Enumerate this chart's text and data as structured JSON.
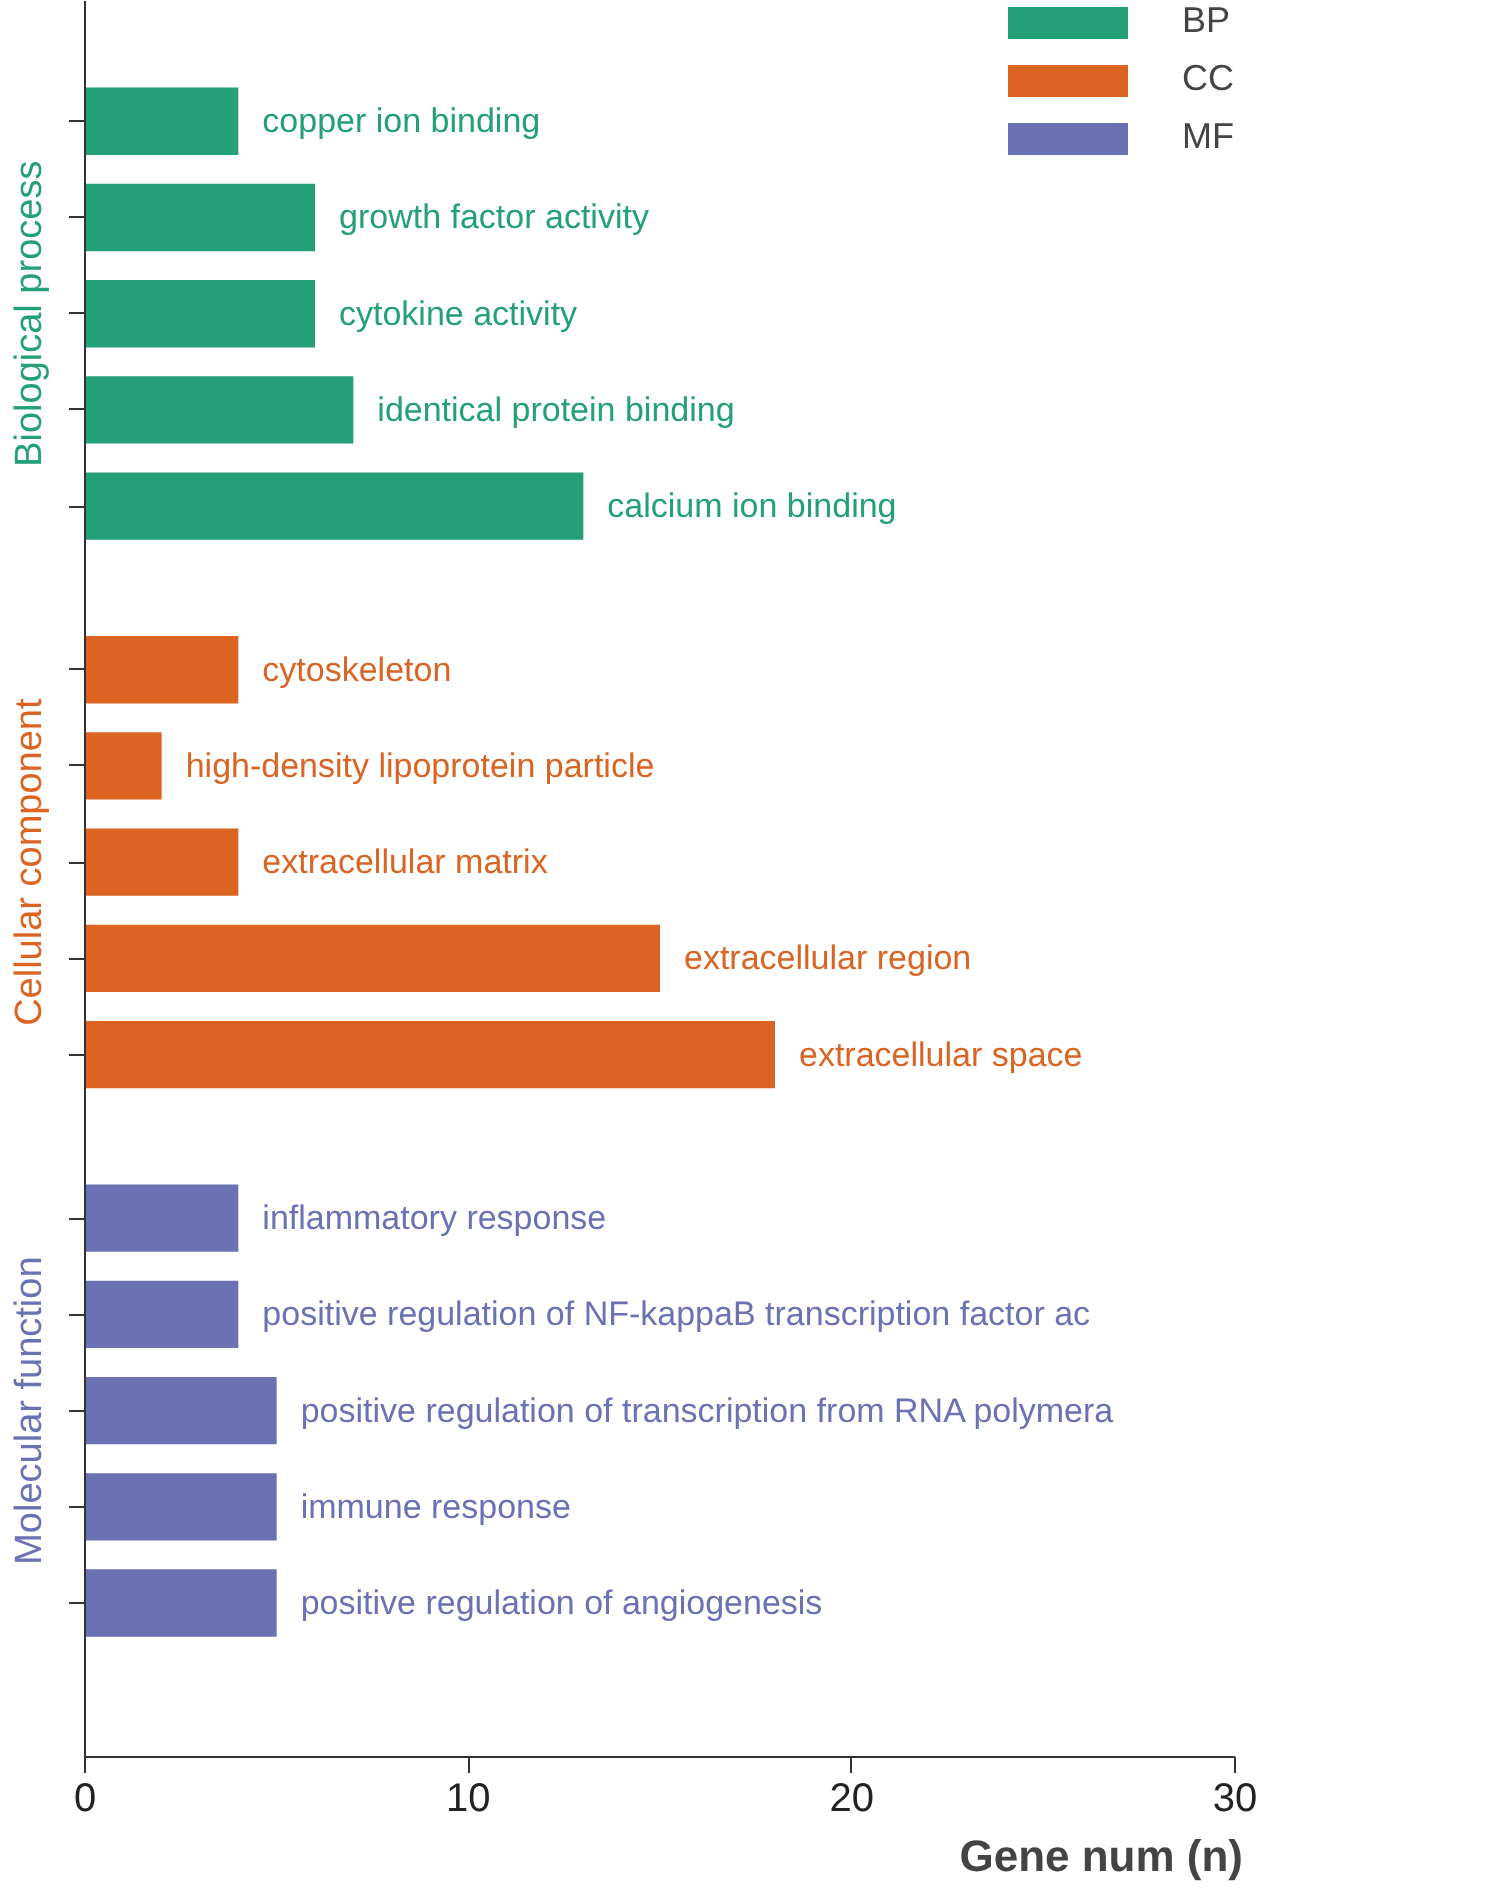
{
  "chart_data": {
    "type": "bar",
    "orientation": "horizontal",
    "xlabel": "Gene num (n)",
    "categories": [
      "copper ion binding",
      "growth factor activity",
      "cytokine activity",
      "identical protein binding",
      "calcium ion binding",
      "cytoskeleton",
      "high-density lipoprotein particle",
      "extracellular matrix",
      "extracellular region",
      "extracellular space",
      "inflammatory response",
      "positive regulation of NF-kappaB transcription factor ac",
      "positive regulation of transcription from RNA polymera",
      "immune response",
      "positive regulation of angiogenesis"
    ],
    "series": [
      {
        "name": "BP",
        "color": "#24a079",
        "values": [
          4,
          6,
          6,
          7,
          13,
          null,
          null,
          null,
          null,
          null,
          null,
          null,
          null,
          null,
          null
        ]
      },
      {
        "name": "CC",
        "color": "#db6423",
        "values": [
          null,
          null,
          null,
          null,
          null,
          4,
          2,
          4,
          15,
          18,
          null,
          null,
          null,
          null,
          null
        ]
      },
      {
        "name": "MF",
        "color": "#6b72b4",
        "values": [
          null,
          null,
          null,
          null,
          null,
          null,
          null,
          null,
          null,
          null,
          4,
          4,
          5,
          5,
          5
        ]
      }
    ],
    "annotations": [
      "Biological process",
      "Cellular component",
      "Molecular function"
    ],
    "xlim": [
      0,
      30
    ],
    "xticks": [
      0,
      10,
      20,
      30
    ],
    "grid": false,
    "legend": "top right"
  }
}
